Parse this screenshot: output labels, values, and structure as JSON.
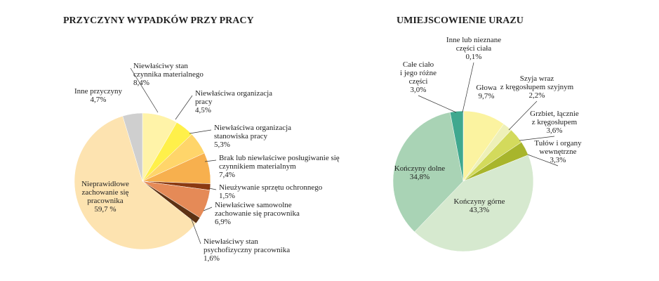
{
  "chart_data": [
    {
      "type": "pie",
      "title": "PRZYCZYNY WYPADKÓW PRZY PRACY",
      "categories": [
        "Niewłaściwy stan\nczynnika materialnego",
        "Niewłaściwa organizacja\npracy",
        "Niewłaściwa organizacja\nstanowiska pracy",
        "Brak lub niewłaściwe posługiwanie się\nczynnikiem materialnym",
        "Nieużywanie sprzętu ochronnego",
        "Niewłaściwe samowolne\nzachowanie się pracownika",
        "Niewłaściwy stan\npsychofizyczny pracownika",
        "Nieprawidłowe\nzachowanie się\npracownika",
        "Inne przyczyny"
      ],
      "values": [
        8.4,
        4.5,
        5.3,
        7.4,
        1.5,
        6.9,
        1.6,
        59.7,
        4.7
      ],
      "value_labels": [
        "8,4%",
        "4,5%",
        "5,3%",
        "7,4%",
        "1,5%",
        "6,9%",
        "1,6%",
        "59,7 %",
        "4,7%"
      ],
      "colors": [
        "#fff3a8",
        "#fff04a",
        "#ffd56a",
        "#f7b04e",
        "#8b3a12",
        "#e58a57",
        "#5e3213",
        "#fde3b0",
        "#cfcfcf"
      ]
    },
    {
      "type": "pie",
      "title": "UMIEJSCOWIENIE URAZU",
      "categories": [
        "Inne lub nieznane\nczęści ciała",
        "Głowa",
        "Szyja wraz\nz kręgosłupem szyjnym",
        "Grzbiet, łącznie\nz kręgosłupem",
        "Tułów i organy\nwewnętrzne",
        "Kończyny górne",
        "Kończyny dolne",
        "Całe ciało\ni jego różne\nczęści"
      ],
      "values": [
        0.1,
        9.7,
        2.2,
        3.6,
        3.3,
        43.3,
        34.8,
        3.0
      ],
      "value_labels": [
        "0,1%",
        "9,7%",
        "2,2%",
        "3,6%",
        "3,3%",
        "43,3%",
        "34,8%",
        "3,0%"
      ],
      "colors": [
        "#1f6f5c",
        "#fbf3a0",
        "#eef0b8",
        "#d3da5c",
        "#a8b52c",
        "#d6e9cf",
        "#a9d3b5",
        "#3fa88f"
      ]
    }
  ]
}
